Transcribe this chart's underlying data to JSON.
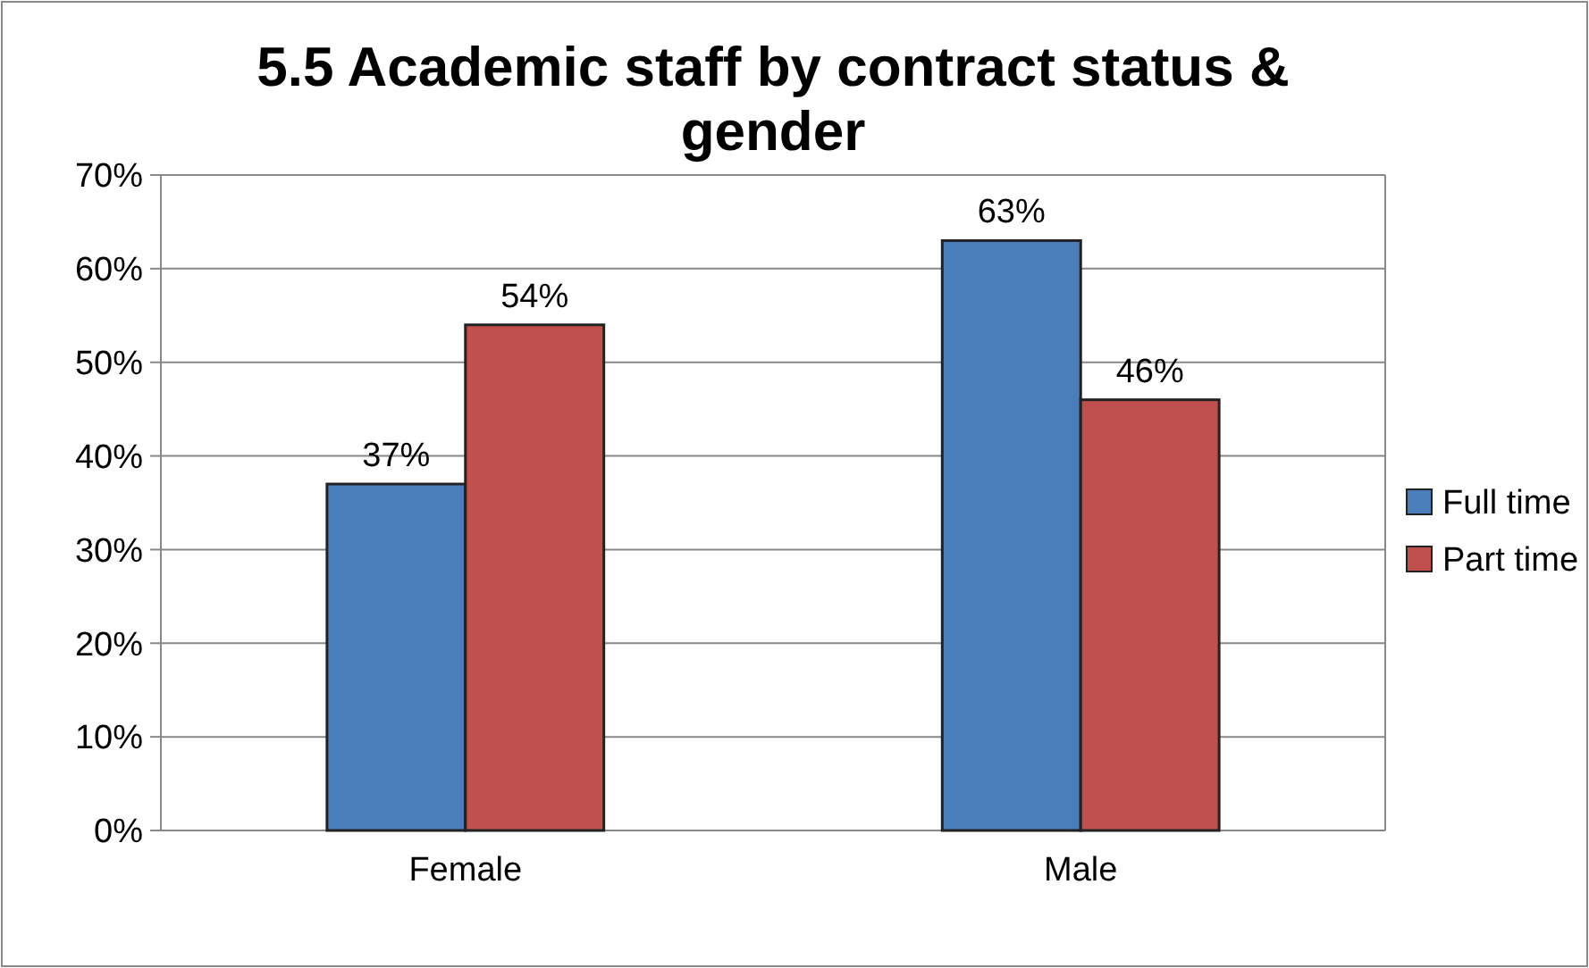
{
  "chart_data": {
    "type": "bar",
    "title": "5.5 Academic staff by contract status & gender",
    "categories": [
      "Female",
      "Male"
    ],
    "series": [
      {
        "name": "Full time",
        "color": "#4a7ebb",
        "values": [
          37,
          63
        ],
        "value_labels": [
          "37%",
          "63%"
        ]
      },
      {
        "name": "Part time",
        "color": "#c0504d",
        "values": [
          54,
          46
        ],
        "value_labels": [
          "54%",
          "46%"
        ]
      }
    ],
    "ylim": [
      0,
      70
    ],
    "yticks": [
      {
        "value": 0,
        "label": "0%"
      },
      {
        "value": 10,
        "label": "10%"
      },
      {
        "value": 20,
        "label": "20%"
      },
      {
        "value": 30,
        "label": "30%"
      },
      {
        "value": 40,
        "label": "40%"
      },
      {
        "value": 50,
        "label": "50%"
      },
      {
        "value": 60,
        "label": "60%"
      },
      {
        "value": 70,
        "label": "70%"
      }
    ],
    "grid": "y",
    "legend": "right"
  }
}
